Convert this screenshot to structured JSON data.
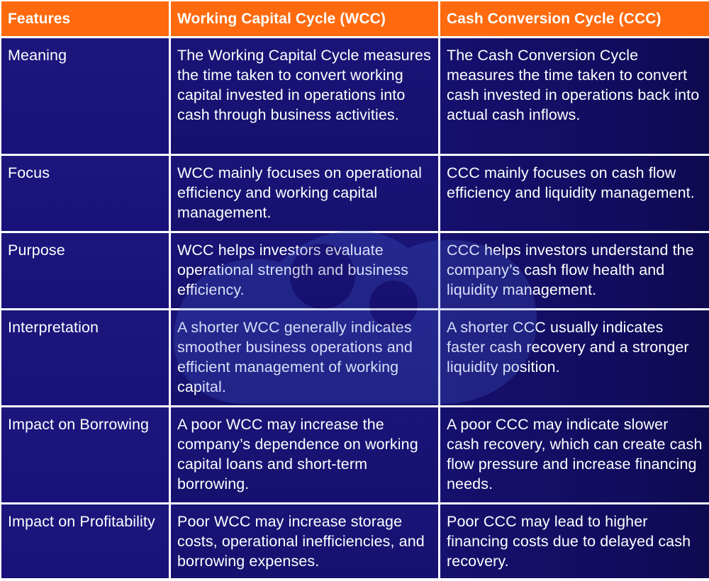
{
  "table": {
    "headers": [
      "Features",
      "Working Capital Cycle (WCC)",
      "Cash Conversion Cycle (CCC)"
    ],
    "rows": [
      {
        "feature": "Meaning",
        "wcc": "The Working Capital Cycle measures the time taken to convert working capital invested in operations into cash through business activities.",
        "ccc": "The Cash Conversion Cycle measures the time taken to convert cash invested in operations back into actual cash inflows."
      },
      {
        "feature": "Focus",
        "wcc": "WCC mainly focuses on operational efficiency and working capital management.",
        "ccc": "CCC mainly focuses on cash flow efficiency and liquidity management."
      },
      {
        "feature": "Purpose",
        "wcc": "WCC helps investors evaluate operational strength and business efficiency.",
        "ccc": "CCC helps investors understand the company’s cash flow health and liquidity management."
      },
      {
        "feature": "Interpretation",
        "wcc": "A shorter WCC generally indicates smoother business operations and efficient management of working capital.",
        "ccc": "A shorter CCC usually indicates faster cash recovery and a stronger liquidity position."
      },
      {
        "feature": "Impact on Borrowing",
        "wcc": "A poor WCC may increase the company’s dependence on working capital loans and short-term borrowing.",
        "ccc": "A poor CCC may indicate slower cash recovery, which can create cash flow pressure and increase financing needs."
      },
      {
        "feature": "Impact on Profitability",
        "wcc": "Poor WCC may increase storage costs, operational inefficiencies, and borrowing expenses.",
        "ccc": "Poor CCC may lead to higher financing costs due to delayed cash recovery."
      }
    ]
  },
  "colors": {
    "header_bg": "#ff6a0e",
    "body_bg": "#18117a",
    "text": "#ffffff",
    "grid_lines": "#ffffff"
  },
  "watermark": {
    "icon": "company-logo-watermark"
  }
}
